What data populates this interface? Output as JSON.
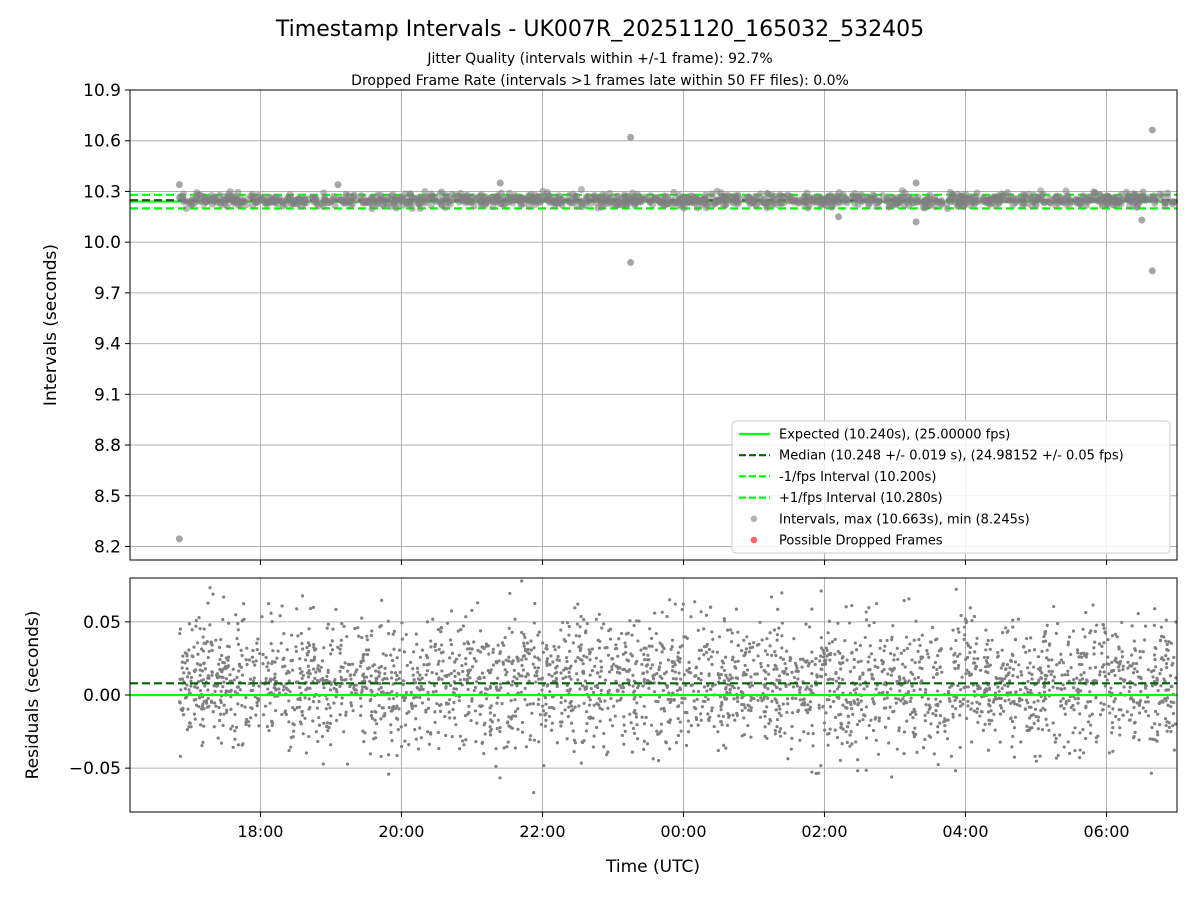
{
  "title": "Timestamp Intervals - UK007R_20251120_165032_532405",
  "subtitle_lines": [
    "Jitter Quality (intervals within +/-1 frame): 92.7%",
    "Dropped Frame Rate (intervals >1 frames late within 50 FF files): 0.0%"
  ],
  "xlabel": "Time (UTC)",
  "colors": {
    "expected": "#00ff00",
    "median": "#006400",
    "fps_band": "#00ff00",
    "intervals": "#808080",
    "dropped": "#ff0000",
    "grid": "#b0b0b0"
  },
  "chart_data": [
    {
      "type": "scatter",
      "panel": "intervals",
      "ylabel": "Intervals (seconds)",
      "ylim": [
        8.12,
        10.9
      ],
      "yticks": [
        8.2,
        8.5,
        8.8,
        9.1,
        9.4,
        9.7,
        10.0,
        10.3,
        10.6,
        10.9
      ],
      "ytick_labels": [
        "8.2",
        "8.5",
        "8.8",
        "9.1",
        "9.4",
        "9.7",
        "10.0",
        "10.3",
        "10.6",
        "10.9"
      ],
      "xlim_hours": [
        16.15,
        31.0
      ],
      "xticks_hours": [
        18,
        20,
        22,
        24,
        26,
        28,
        30
      ],
      "xtick_labels": [
        "18:00",
        "20:00",
        "22:00",
        "00:00",
        "02:00",
        "04:00",
        "06:00"
      ],
      "grid": true,
      "legend_placement": "lower-right",
      "data_range_hours": [
        16.85,
        31.0
      ],
      "reference_lines": [
        {
          "name": "Expected (10.240s), (25.00000 fps)",
          "y": 10.24,
          "style": "solid"
        },
        {
          "name": "Median (10.248 +/- 0.019 s), (24.98152 +/- 0.05 fps)",
          "y": 10.248,
          "style": "dashed"
        },
        {
          "name": "-1/fps Interval (10.200s)",
          "y": 10.2,
          "style": "dashed"
        },
        {
          "name": "+1/fps Interval (10.280s)",
          "y": 10.28,
          "style": "dashed"
        }
      ],
      "scatter_series": [
        {
          "name": "Intervals, max (10.663s), min (8.245s)",
          "marker": "circle"
        },
        {
          "name": "Possible Dropped Frames",
          "marker": "circle"
        }
      ],
      "bulk_center": 10.248,
      "bulk_spread": 0.019,
      "n_points": 1300,
      "outliers": [
        {
          "x": 16.85,
          "y": 8.245
        },
        {
          "x": 23.25,
          "y": 10.62
        },
        {
          "x": 23.25,
          "y": 9.88
        },
        {
          "x": 30.65,
          "y": 10.663
        },
        {
          "x": 30.65,
          "y": 9.83
        },
        {
          "x": 16.85,
          "y": 10.34
        },
        {
          "x": 19.1,
          "y": 10.34
        },
        {
          "x": 21.4,
          "y": 10.35
        },
        {
          "x": 27.3,
          "y": 10.35
        },
        {
          "x": 27.3,
          "y": 10.12
        },
        {
          "x": 26.2,
          "y": 10.15
        },
        {
          "x": 30.5,
          "y": 10.13
        }
      ]
    },
    {
      "type": "scatter",
      "panel": "residuals",
      "ylabel": "Residuals (seconds)",
      "ylim": [
        -0.08,
        0.08
      ],
      "yticks": [
        -0.05,
        0.0,
        0.05
      ],
      "ytick_labels": [
        "−0.05",
        "0.00",
        "0.05"
      ],
      "xlim_hours": [
        16.15,
        31.0
      ],
      "xticks_hours": [
        18,
        20,
        22,
        24,
        26,
        28,
        30
      ],
      "xtick_labels": [
        "18:00",
        "20:00",
        "22:00",
        "00:00",
        "02:00",
        "04:00",
        "06:00"
      ],
      "grid": true,
      "data_range_hours": [
        16.85,
        31.0
      ],
      "reference_lines": [
        {
          "y": 0.0,
          "style": "solid"
        },
        {
          "y": 0.008,
          "style": "dashed"
        }
      ],
      "bulk_center": 0.008,
      "bulk_spread": 0.022,
      "n_points": 3000
    }
  ]
}
